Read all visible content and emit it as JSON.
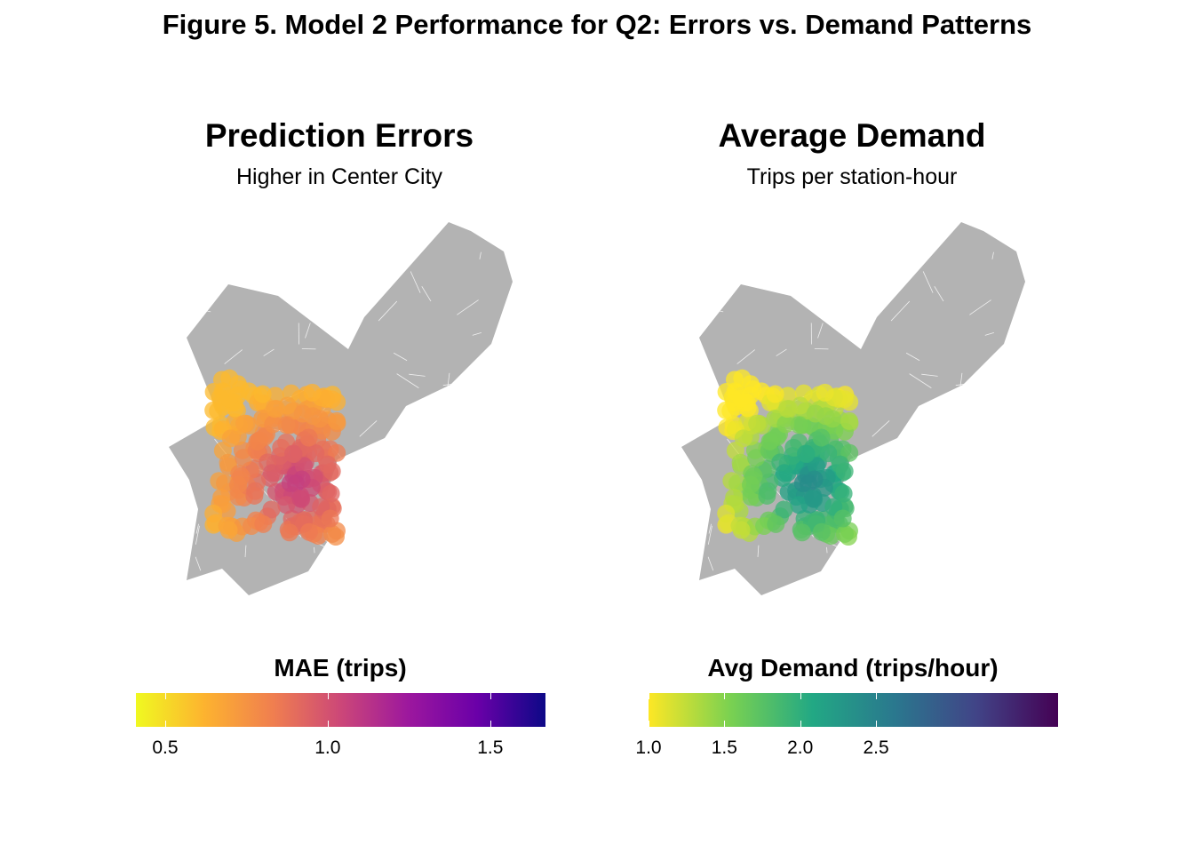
{
  "figure_title": "Figure 5. Model 2 Performance for Q2: Errors vs. Demand Patterns",
  "chart_data": [
    {
      "type": "map",
      "title": "Prediction Errors",
      "subtitle": "Higher in Center City",
      "legend": {
        "title": "MAE (trips)",
        "palette": "plasma",
        "colors": [
          "#f0f921",
          "#fdb32f",
          "#f07f4f",
          "#cc4778",
          "#9c179e",
          "#6a00a8",
          "#0d0887"
        ],
        "range": [
          0.41,
          1.67
        ],
        "ticks": [
          0.5,
          1.0,
          1.5
        ],
        "tick_labels": [
          "0.5",
          "1.0",
          "1.5"
        ],
        "placement": "bottom"
      },
      "basemap_color": "#b3b3b3"
    },
    {
      "type": "map",
      "title": "Average Demand",
      "subtitle": "Trips per station-hour",
      "legend": {
        "title": "Avg Demand (trips/hour)",
        "palette": "viridis",
        "colors": [
          "#fde725",
          "#7ad151",
          "#22a884",
          "#2a788e",
          "#414487",
          "#440154"
        ],
        "range": [
          1.0,
          3.7
        ],
        "ticks": [
          1.0,
          1.5,
          2.0,
          2.5
        ],
        "tick_labels": [
          "1.0",
          "1.5",
          "2.0",
          "2.5"
        ],
        "placement": "bottom"
      },
      "basemap_color": "#b3b3b3"
    }
  ]
}
